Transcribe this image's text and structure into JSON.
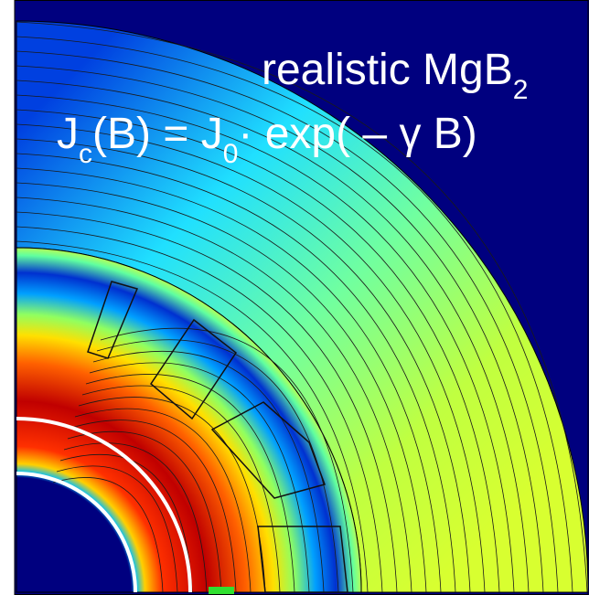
{
  "title": {
    "text": "realistic MgB",
    "subscript": "2"
  },
  "formula": [
    {
      "text": "J",
      "subscript": "c"
    },
    {
      "text": "(B) = J",
      "subscript": "0"
    },
    {
      "text": "· exp( – γ B)"
    }
  ]
}
